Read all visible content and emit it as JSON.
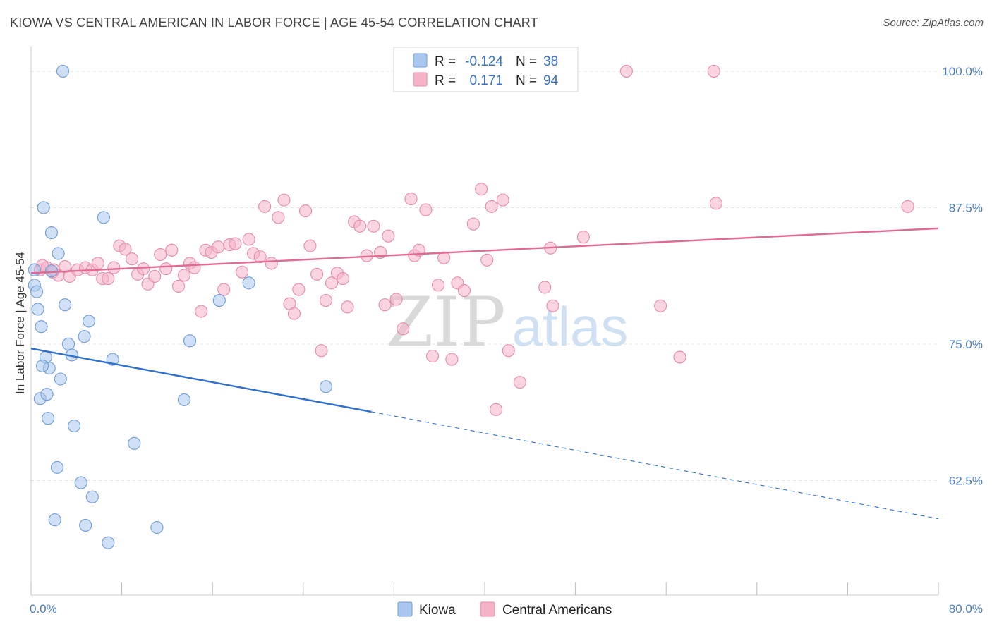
{
  "header": {
    "title": "KIOWA VS CENTRAL AMERICAN IN LABOR FORCE | AGE 45-54 CORRELATION CHART",
    "source": "Source: ZipAtlas.com"
  },
  "watermark": {
    "zip": "ZIP",
    "atlas": "atlas"
  },
  "legend_top": {
    "rows": [
      {
        "r_label": "R =",
        "r_value": "-0.124",
        "n_label": "N =",
        "n_value": "38",
        "color": "#a9c7ee"
      },
      {
        "r_label": "R =",
        "r_value": "0.171",
        "n_label": "N =",
        "n_value": "94",
        "color": "#f5b3c8"
      }
    ]
  },
  "legend_bottom": {
    "items": [
      {
        "label": "Kiowa",
        "color": "#a9c7ee"
      },
      {
        "label": "Central Americans",
        "color": "#f5b3c8"
      }
    ]
  },
  "chart_data": {
    "type": "scatter",
    "title": "KIOWA VS CENTRAL AMERICAN IN LABOR FORCE | AGE 45-54 CORRELATION CHART",
    "xlabel": "",
    "ylabel": "In Labor Force | Age 45-54",
    "xlim": [
      0,
      80
    ],
    "ylim": [
      52,
      102
    ],
    "x_tick_labels": [
      "0.0%",
      "80.0%"
    ],
    "y_ticks": [
      62.5,
      75.0,
      87.5,
      100.0
    ],
    "y_tick_labels": [
      "62.5%",
      "75.0%",
      "87.5%",
      "100.0%"
    ],
    "grid": true,
    "series": [
      {
        "name": "Kiowa",
        "color": "#a9c7ee",
        "stroke": "#6f9bd6",
        "trend": {
          "x0": 0,
          "y0": 74.6,
          "x1": 30,
          "y1": 68.8,
          "x_dash_end": 80,
          "y_dash_end": 59.0,
          "color": "#2f6fce"
        },
        "points": [
          [
            2.8,
            100.0
          ],
          [
            0.3,
            81.8
          ],
          [
            0.3,
            80.4
          ],
          [
            0.5,
            79.8
          ],
          [
            0.6,
            78.2
          ],
          [
            0.9,
            76.6
          ],
          [
            1.1,
            87.5
          ],
          [
            1.8,
            85.2
          ],
          [
            2.4,
            83.3
          ],
          [
            1.8,
            81.7
          ],
          [
            3.0,
            78.6
          ],
          [
            3.3,
            75.0
          ],
          [
            3.6,
            74.0
          ],
          [
            2.6,
            71.8
          ],
          [
            1.6,
            72.8
          ],
          [
            1.3,
            73.8
          ],
          [
            1.0,
            73.0
          ],
          [
            0.8,
            70.0
          ],
          [
            1.4,
            70.4
          ],
          [
            1.5,
            68.2
          ],
          [
            3.8,
            67.5
          ],
          [
            5.1,
            77.1
          ],
          [
            4.7,
            75.7
          ],
          [
            6.4,
            86.6
          ],
          [
            7.2,
            73.6
          ],
          [
            2.3,
            63.7
          ],
          [
            4.4,
            62.3
          ],
          [
            5.4,
            61.0
          ],
          [
            2.1,
            58.9
          ],
          [
            4.8,
            58.4
          ],
          [
            6.8,
            56.8
          ],
          [
            9.1,
            65.9
          ],
          [
            11.1,
            58.2
          ],
          [
            13.5,
            69.9
          ],
          [
            14.0,
            75.3
          ],
          [
            16.6,
            79.0
          ],
          [
            19.2,
            80.6
          ],
          [
            26.0,
            71.1
          ]
        ]
      },
      {
        "name": "Central Americans",
        "color": "#f5b3c8",
        "stroke": "#e58aa8",
        "trend": {
          "x0": 0,
          "y0": 81.5,
          "x1": 80,
          "y1": 85.6,
          "color": "#e06a93"
        },
        "points": [
          [
            0.8,
            81.8
          ],
          [
            1.4,
            82.0
          ],
          [
            1.9,
            81.6
          ],
          [
            2.4,
            81.3
          ],
          [
            3.0,
            82.1
          ],
          [
            3.4,
            81.2
          ],
          [
            4.1,
            81.8
          ],
          [
            4.8,
            82.0
          ],
          [
            5.4,
            81.8
          ],
          [
            5.9,
            82.4
          ],
          [
            6.3,
            81.0
          ],
          [
            6.8,
            81.0
          ],
          [
            7.3,
            82.0
          ],
          [
            7.8,
            84.0
          ],
          [
            8.3,
            83.7
          ],
          [
            8.9,
            82.8
          ],
          [
            9.4,
            81.4
          ],
          [
            9.9,
            81.9
          ],
          [
            10.3,
            80.5
          ],
          [
            10.9,
            81.2
          ],
          [
            11.4,
            83.2
          ],
          [
            11.9,
            81.9
          ],
          [
            12.4,
            83.6
          ],
          [
            13.0,
            80.3
          ],
          [
            13.5,
            81.3
          ],
          [
            14.0,
            82.4
          ],
          [
            14.4,
            82.0
          ],
          [
            15.0,
            78.0
          ],
          [
            15.4,
            83.6
          ],
          [
            15.9,
            83.4
          ],
          [
            16.5,
            83.9
          ],
          [
            17.0,
            80.0
          ],
          [
            17.5,
            84.1
          ],
          [
            18.0,
            84.2
          ],
          [
            18.6,
            81.6
          ],
          [
            19.2,
            84.6
          ],
          [
            19.6,
            83.3
          ],
          [
            20.2,
            83.0
          ],
          [
            20.6,
            87.6
          ],
          [
            21.2,
            82.4
          ],
          [
            21.8,
            86.6
          ],
          [
            22.3,
            88.2
          ],
          [
            22.8,
            78.7
          ],
          [
            23.2,
            77.8
          ],
          [
            23.6,
            80.0
          ],
          [
            24.2,
            87.2
          ],
          [
            24.6,
            84.0
          ],
          [
            25.2,
            81.4
          ],
          [
            25.6,
            74.4
          ],
          [
            26.0,
            79.0
          ],
          [
            26.5,
            80.6
          ],
          [
            27.0,
            81.5
          ],
          [
            27.5,
            81.0
          ],
          [
            27.9,
            78.4
          ],
          [
            28.5,
            86.2
          ],
          [
            29.0,
            85.8
          ],
          [
            29.6,
            83.1
          ],
          [
            30.2,
            85.8
          ],
          [
            30.8,
            83.4
          ],
          [
            31.2,
            78.6
          ],
          [
            31.5,
            84.9
          ],
          [
            32.2,
            79.1
          ],
          [
            32.8,
            76.4
          ],
          [
            33.5,
            88.3
          ],
          [
            33.8,
            83.1
          ],
          [
            34.2,
            83.6
          ],
          [
            34.8,
            87.3
          ],
          [
            35.4,
            73.9
          ],
          [
            35.9,
            80.4
          ],
          [
            36.4,
            82.9
          ],
          [
            37.1,
            73.6
          ],
          [
            37.6,
            80.6
          ],
          [
            38.2,
            79.9
          ],
          [
            39.0,
            86.0
          ],
          [
            39.7,
            89.2
          ],
          [
            40.2,
            82.7
          ],
          [
            40.6,
            87.6
          ],
          [
            41.0,
            69.0
          ],
          [
            41.6,
            88.2
          ],
          [
            42.1,
            74.4
          ],
          [
            43.1,
            71.5
          ],
          [
            43.6,
            100.0
          ],
          [
            45.3,
            80.2
          ],
          [
            45.8,
            83.8
          ],
          [
            46.0,
            78.5
          ],
          [
            48.7,
            84.8
          ],
          [
            52.5,
            100.0
          ],
          [
            55.5,
            78.5
          ],
          [
            57.2,
            73.8
          ],
          [
            60.2,
            100.0
          ],
          [
            60.4,
            87.9
          ],
          [
            77.3,
            87.6
          ],
          [
            1.0,
            82.2
          ],
          [
            2.0,
            81.8
          ]
        ]
      }
    ]
  }
}
